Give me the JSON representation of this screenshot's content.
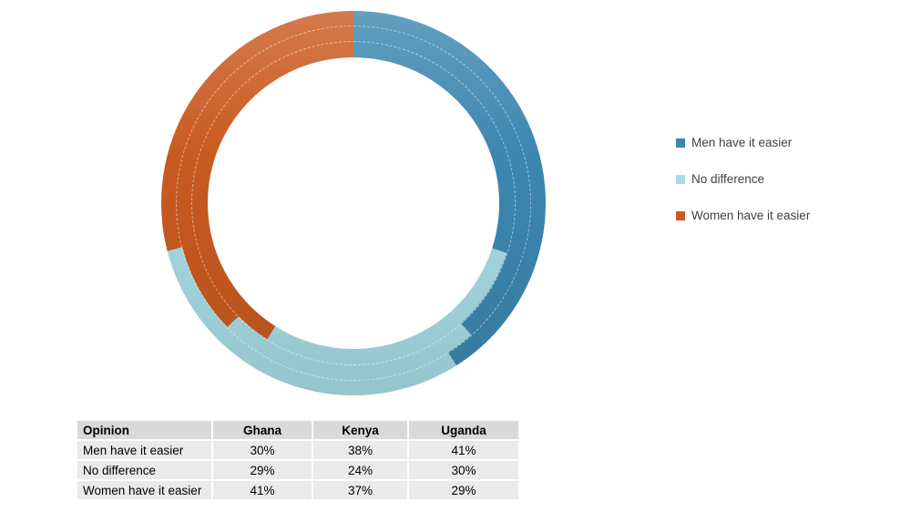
{
  "legend": {
    "items": [
      {
        "label": "Men have it easier",
        "color": "#3c87b0"
      },
      {
        "label": "No difference",
        "color": "#a7dbe4"
      },
      {
        "label": "Women have it easier",
        "color": "#c95a20"
      }
    ]
  },
  "table": {
    "headers": [
      "Opinion",
      "Ghana",
      "Kenya",
      "Uganda"
    ],
    "rows": [
      [
        "Men have it easier",
        "30%",
        "38%",
        "41%"
      ],
      [
        "No difference",
        "29%",
        "24%",
        "30%"
      ],
      [
        "Women have it easier",
        "41%",
        "37%",
        "29%"
      ]
    ]
  },
  "chart_data": {
    "type": "donut",
    "subtype": "multi-ring-concentric",
    "categories": [
      "Men have it easier",
      "No difference",
      "Women have it easier"
    ],
    "series_colors": [
      "#3c87b0",
      "#a7dbe4",
      "#c95a20"
    ],
    "start_angle_deg": 0,
    "direction": "clockwise",
    "rings": [
      {
        "name": "Uganda",
        "position": "outer",
        "values": [
          41,
          30,
          29
        ]
      },
      {
        "name": "Kenya",
        "position": "middle",
        "values": [
          38,
          24,
          37
        ]
      },
      {
        "name": "Ghana",
        "position": "inner",
        "values": [
          30,
          29,
          41
        ]
      }
    ],
    "legend_position": "right",
    "hole_ratio": 0.76,
    "separator_style": "dashed-white"
  },
  "colors": {
    "background": "#ffffff",
    "table_header_bg": "#d9d9d9",
    "table_row_bg": "#eaeaea",
    "legend_text": "#404040"
  }
}
